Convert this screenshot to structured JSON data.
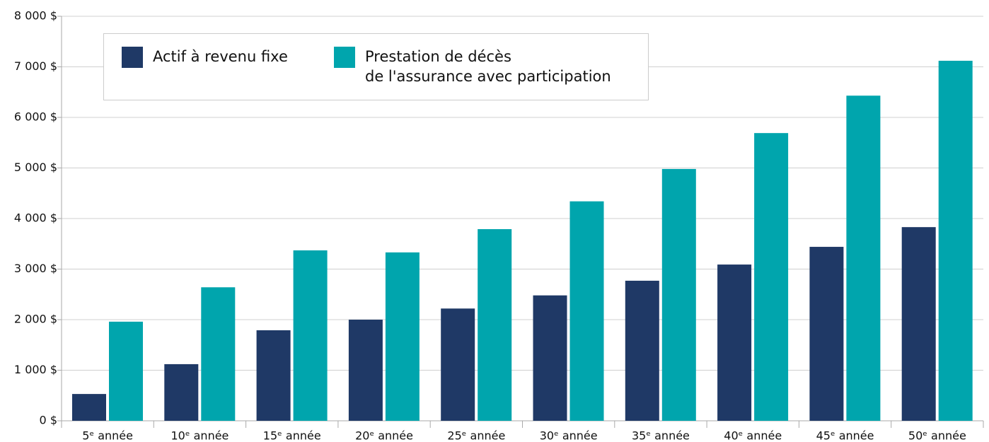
{
  "chart_data": {
    "type": "bar",
    "categories": [
      "5ᵉ année",
      "10ᵉ année",
      "15ᵉ année",
      "20ᵉ année",
      "25ᵉ année",
      "30ᵉ année",
      "35ᵉ année",
      "40ᵉ année",
      "45ᵉ année",
      "50ᵉ année"
    ],
    "series": [
      {
        "name": "Actif à revenu fixe",
        "color": "#1f3966",
        "values": [
          530,
          1120,
          1790,
          2000,
          2220,
          2480,
          2770,
          3090,
          3440,
          3830
        ]
      },
      {
        "name": "Prestation de décès\nde l'assurance avec participation",
        "color": "#00a5ad",
        "values": [
          1960,
          2640,
          3370,
          3330,
          3790,
          4340,
          4980,
          5690,
          6430,
          7120
        ]
      }
    ],
    "ylim": [
      0,
      8000
    ],
    "yticks": [
      {
        "value": 0,
        "label": "0 $"
      },
      {
        "value": 1000,
        "label": "1 000 $"
      },
      {
        "value": 2000,
        "label": "2 000 $"
      },
      {
        "value": 3000,
        "label": "3 000 $"
      },
      {
        "value": 4000,
        "label": "4 000 $"
      },
      {
        "value": 5000,
        "label": "5 000 $"
      },
      {
        "value": 6000,
        "label": "6 000 $"
      },
      {
        "value": 7000,
        "label": "7 000 $"
      },
      {
        "value": 8000,
        "label": "8 000 $"
      }
    ],
    "grid": true
  }
}
